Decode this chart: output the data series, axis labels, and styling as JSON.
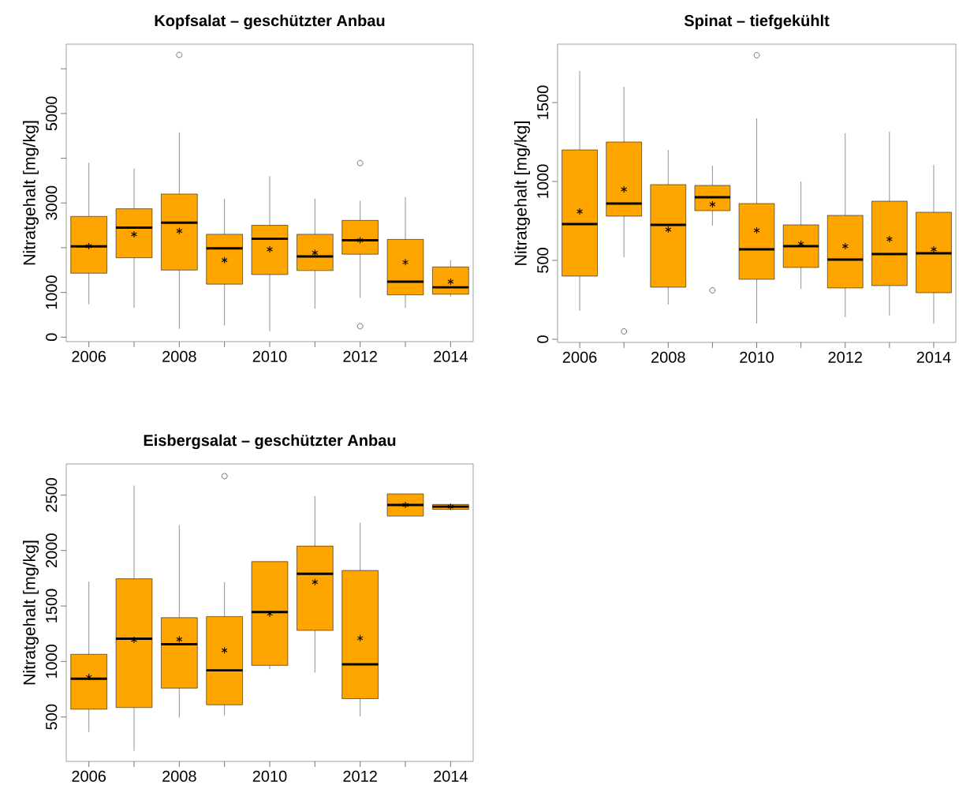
{
  "chart_data": [
    {
      "type": "box",
      "title": "Kopfsalat – geschützter Anbau",
      "ylabel": "Nitratgehalt [mg/kg]",
      "color": "#ffa500",
      "marker": "star",
      "categories": [
        "2006",
        null,
        "2008",
        null,
        "2010",
        null,
        "2012",
        null,
        "2014"
      ],
      "ylim": [
        -100,
        6550
      ],
      "yticks": [
        0,
        1000,
        {
          "value": 2000,
          "label": null
        },
        3000,
        {
          "value": 4000,
          "label": null
        },
        5000,
        {
          "value": 6000,
          "label": null
        }
      ],
      "boxes": [
        {
          "low": 735,
          "q1": 1430,
          "median": 2030,
          "q3": 2700,
          "high": 3900,
          "mean": 2035
        },
        {
          "low": 660,
          "q1": 1775,
          "median": 2450,
          "q3": 2870,
          "high": 3770,
          "mean": 2300
        },
        {
          "low": 185,
          "q1": 1500,
          "median": 2560,
          "q3": 3200,
          "high": 4580,
          "mean": 2375,
          "outliers": [
            6310
          ]
        },
        {
          "low": 260,
          "q1": 1185,
          "median": 1985,
          "q3": 2300,
          "high": 3100,
          "mean": 1720
        },
        {
          "low": 135,
          "q1": 1400,
          "median": 2200,
          "q3": 2500,
          "high": 3600,
          "mean": 1965
        },
        {
          "low": 635,
          "q1": 1490,
          "median": 1805,
          "q3": 2300,
          "high": 3100,
          "mean": 1885
        },
        {
          "low": 880,
          "q1": 1855,
          "median": 2165,
          "q3": 2610,
          "high": 3050,
          "mean": 2165,
          "outliers": [
            3890,
            245
          ]
        },
        {
          "low": 655,
          "q1": 945,
          "median": 1240,
          "q3": 2185,
          "high": 3135,
          "mean": 1675
        },
        {
          "low": 910,
          "q1": 960,
          "median": 1115,
          "q3": 1570,
          "high": 1720,
          "mean": 1240
        }
      ]
    },
    {
      "type": "box",
      "title": "Spinat – tiefgekühlt",
      "ylabel": "Nitratgehalt [mg/kg]",
      "color": "#ffa500",
      "marker": "star",
      "categories": [
        "2006",
        null,
        "2008",
        null,
        "2010",
        null,
        "2012",
        null,
        "2014"
      ],
      "ylim": [
        -20,
        1870
      ],
      "yticks": [
        0,
        500,
        1000,
        1500
      ],
      "boxes": [
        {
          "low": 180,
          "q1": 400,
          "median": 730,
          "q3": 1200,
          "high": 1700,
          "mean": 810
        },
        {
          "low": 520,
          "q1": 780,
          "median": 860,
          "q3": 1250,
          "high": 1600,
          "mean": 950,
          "outliers": [
            50
          ]
        },
        {
          "low": 220,
          "q1": 330,
          "median": 725,
          "q3": 980,
          "high": 1200,
          "mean": 695
        },
        {
          "low": 720,
          "q1": 815,
          "median": 900,
          "q3": 975,
          "high": 1100,
          "mean": 855,
          "outliers": [
            310
          ]
        },
        {
          "low": 100,
          "q1": 380,
          "median": 570,
          "q3": 860,
          "high": 1400,
          "mean": 690,
          "outliers": [
            1800
          ]
        },
        {
          "low": 320,
          "q1": 455,
          "median": 590,
          "q3": 725,
          "high": 1000,
          "mean": 605
        },
        {
          "low": 140,
          "q1": 325,
          "median": 505,
          "q3": 785,
          "high": 1305,
          "mean": 590
        },
        {
          "low": 150,
          "q1": 340,
          "median": 540,
          "q3": 875,
          "high": 1315,
          "mean": 635
        },
        {
          "low": 100,
          "q1": 295,
          "median": 545,
          "q3": 805,
          "high": 1105,
          "mean": 570
        }
      ]
    },
    {
      "type": "box",
      "title": "Eisbergsalat – geschützter Anbau",
      "ylabel": "Nitratgehalt [mg/kg]",
      "color": "#ffa500",
      "marker": "star",
      "categories": [
        "2006",
        null,
        "2008",
        null,
        "2010",
        null,
        "2012",
        null,
        "2014"
      ],
      "ylim": [
        100,
        2780
      ],
      "yticks": [
        500,
        1000,
        1500,
        2000,
        2500
      ],
      "boxes": [
        {
          "low": 365,
          "q1": 570,
          "median": 845,
          "q3": 1065,
          "high": 1720,
          "mean": 860
        },
        {
          "low": 195,
          "q1": 585,
          "median": 1205,
          "q3": 1745,
          "high": 2585,
          "mean": 1195
        },
        {
          "low": 495,
          "q1": 760,
          "median": 1155,
          "q3": 1395,
          "high": 2230,
          "mean": 1200
        },
        {
          "low": 515,
          "q1": 610,
          "median": 920,
          "q3": 1405,
          "high": 1715,
          "mean": 1100,
          "outliers": [
            2670
          ]
        },
        {
          "low": 930,
          "q1": 965,
          "median": 1445,
          "q3": 1900,
          "high": 1900,
          "mean": 1430
        },
        {
          "low": 900,
          "q1": 1280,
          "median": 1790,
          "q3": 2040,
          "high": 2490,
          "mean": 1715
        },
        {
          "low": 505,
          "q1": 665,
          "median": 975,
          "q3": 1820,
          "high": 2250,
          "mean": 1210
        },
        {
          "low": 2310,
          "q1": 2310,
          "median": 2410,
          "q3": 2510,
          "high": 2510,
          "mean": 2410
        },
        {
          "low": 2370,
          "q1": 2370,
          "median": 2395,
          "q3": 2415,
          "high": 2415,
          "mean": 2395
        }
      ]
    }
  ]
}
